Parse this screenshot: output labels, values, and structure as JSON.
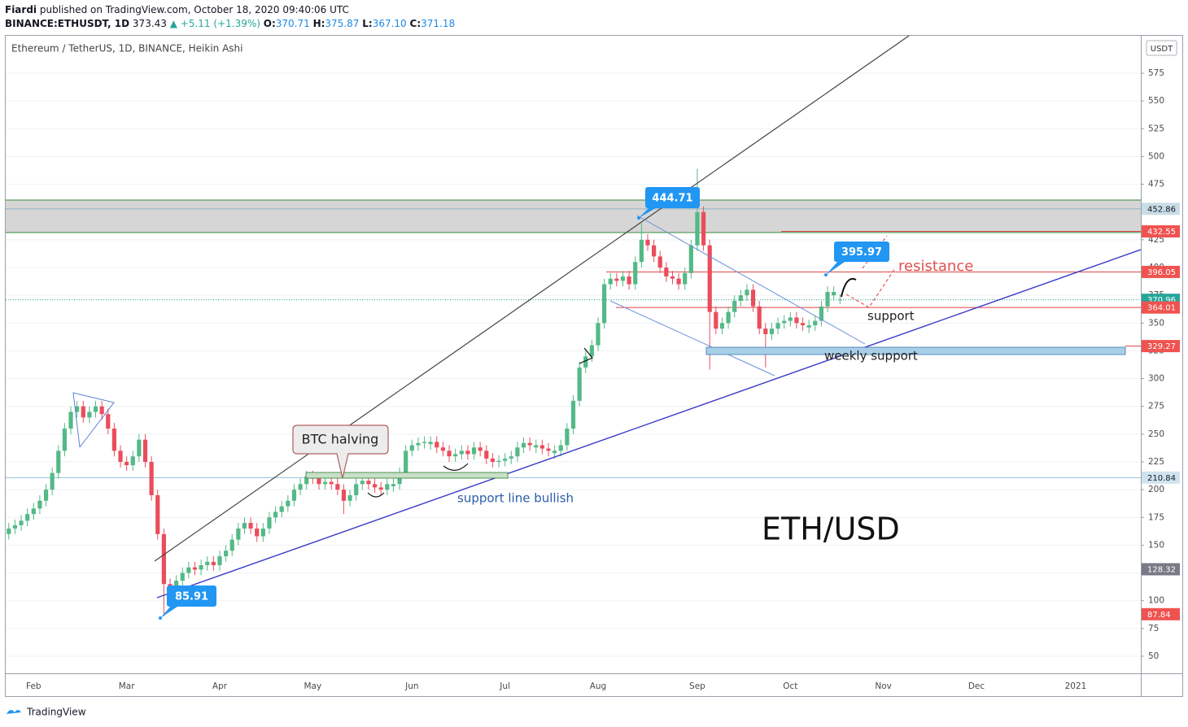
{
  "header": {
    "author": "Fiardi",
    "published": "published on TradingView.com, October 18, 2020 09:40:06 UTC",
    "symbol": "BINANCE:ETHUSDT, 1D",
    "price": "373.43",
    "change": "▲ +5.11 (+1.39%)",
    "ohlc": [
      {
        "key": "O:",
        "value": "370.71"
      },
      {
        "key": "H:",
        "value": "375.87"
      },
      {
        "key": "L:",
        "value": "367.10"
      },
      {
        "key": "C:",
        "value": "371.18"
      }
    ]
  },
  "footer": "TradingView",
  "chart_data": {
    "type": "candlestick",
    "title": "Ethereum / TetherUS, 1D, BINANCE, Heikin Ashi",
    "currency": "USDT",
    "up_color": "#53b987",
    "down_color": "#eb4d5c",
    "grid": true,
    "categories": [
      null,
      null,
      null,
      null,
      "Feb",
      null,
      null,
      null,
      null,
      null,
      null,
      null,
      null,
      null,
      null,
      null,
      null,
      null,
      null,
      "Mar",
      null,
      null,
      null,
      null,
      null,
      null,
      null,
      null,
      null,
      null,
      null,
      null,
      null,
      null,
      "Apr",
      null,
      null,
      null,
      null,
      null,
      null,
      null,
      null,
      null,
      null,
      null,
      null,
      null,
      null,
      "May",
      null,
      null,
      null,
      null,
      null,
      null,
      null,
      null,
      null,
      null,
      null,
      null,
      null,
      null,
      null,
      "Jun",
      null,
      null,
      null,
      null,
      null,
      null,
      null,
      null,
      null,
      null,
      null,
      null,
      null,
      null,
      "Jul",
      null,
      null,
      null,
      null,
      null,
      null,
      null,
      null,
      null,
      null,
      null,
      null,
      null,
      null,
      "Aug",
      null,
      null,
      null,
      null,
      null,
      null,
      null,
      null,
      null,
      null,
      null,
      null,
      null,
      null,
      null,
      "Sep",
      null,
      null,
      null,
      null,
      null,
      null,
      null,
      null,
      null,
      null,
      null,
      null,
      null,
      null,
      "Oct",
      null,
      null,
      null,
      null,
      null,
      null,
      null,
      null,
      null,
      null,
      null,
      null,
      null,
      null,
      "Nov",
      null,
      null,
      null,
      null,
      null,
      null,
      null,
      null,
      null,
      null,
      null,
      null,
      null,
      null,
      "Dec",
      null,
      null,
      null,
      null,
      null,
      null,
      null,
      null,
      null,
      null,
      null,
      null,
      null,
      null,
      null,
      "2021",
      null,
      null,
      null,
      null,
      null,
      null,
      null,
      null,
      null,
      null
    ],
    "open": [
      160,
      165,
      168,
      172,
      178,
      183,
      190,
      200,
      215,
      235,
      255,
      270,
      275,
      265,
      270,
      275,
      268,
      255,
      235,
      225,
      222,
      230,
      245,
      225,
      195,
      160,
      115,
      110,
      118,
      125,
      130,
      128,
      132,
      135,
      132,
      140,
      145,
      155,
      165,
      170,
      165,
      158,
      165,
      175,
      180,
      185,
      190,
      200,
      205,
      212,
      210,
      205,
      207,
      205,
      200,
      190,
      195,
      205,
      208,
      205,
      202,
      200,
      203,
      205,
      215,
      235,
      240,
      242,
      241,
      243,
      238,
      235,
      230,
      232,
      235,
      232,
      238,
      235,
      228,
      225,
      226,
      228,
      230,
      238,
      242,
      238,
      240,
      237,
      233,
      235,
      240,
      255,
      280,
      310,
      320,
      330,
      350,
      385,
      390,
      388,
      392,
      385,
      405,
      425,
      420,
      410,
      400,
      392,
      390,
      385,
      395,
      420,
      450,
      420,
      360,
      345,
      350,
      360,
      370,
      375,
      380,
      365,
      345,
      340,
      345,
      350,
      352,
      355,
      350,
      346,
      348,
      352,
      365,
      375,
      370.71,
      null,
      null,
      null,
      null,
      null,
      null,
      null,
      null,
      null,
      null,
      null,
      null,
      null,
      null,
      null,
      null,
      null,
      null,
      null,
      null,
      null,
      null,
      null,
      null,
      null,
      null,
      null,
      null,
      null,
      null,
      null,
      null,
      null,
      null,
      null,
      null,
      null,
      null,
      null,
      null,
      null,
      null,
      null,
      null,
      null,
      null,
      null,
      null
    ],
    "high": [
      170,
      173,
      177,
      183,
      188,
      195,
      205,
      220,
      240,
      260,
      275,
      280,
      280,
      275,
      280,
      280,
      273,
      260,
      240,
      230,
      235,
      250,
      250,
      230,
      200,
      165,
      120,
      123,
      130,
      135,
      135,
      137,
      140,
      140,
      145,
      150,
      160,
      170,
      175,
      175,
      170,
      170,
      180,
      185,
      190,
      195,
      205,
      210,
      217,
      217,
      215,
      212,
      212,
      210,
      205,
      200,
      210,
      213,
      213,
      210,
      207,
      210,
      210,
      220,
      240,
      245,
      247,
      248,
      248,
      248,
      243,
      240,
      237,
      240,
      240,
      243,
      243,
      240,
      233,
      231,
      233,
      235,
      243,
      247,
      247,
      245,
      245,
      242,
      240,
      245,
      260,
      285,
      315,
      325,
      335,
      355,
      390,
      395,
      395,
      397,
      397,
      410,
      440,
      430,
      425,
      415,
      405,
      397,
      395,
      400,
      425,
      489,
      455,
      425,
      365,
      355,
      365,
      375,
      380,
      385,
      385,
      370,
      350,
      350,
      355,
      357,
      360,
      360,
      355,
      353,
      357,
      370,
      383,
      383,
      375.87,
      null,
      null,
      null,
      null,
      null,
      null,
      null,
      null,
      null,
      null,
      null,
      null,
      null,
      null,
      null,
      null,
      null,
      null,
      null,
      null,
      null,
      null,
      null,
      null,
      null,
      null,
      null,
      null,
      null,
      null,
      null,
      null,
      null,
      null,
      null,
      null,
      null,
      null,
      null,
      null,
      null,
      null,
      null,
      null,
      null,
      null,
      null,
      null
    ],
    "low": [
      155,
      160,
      163,
      167,
      173,
      178,
      185,
      195,
      210,
      230,
      250,
      265,
      260,
      260,
      265,
      263,
      250,
      230,
      220,
      217,
      217,
      225,
      220,
      190,
      155,
      86,
      105,
      105,
      113,
      120,
      123,
      123,
      127,
      127,
      127,
      135,
      140,
      150,
      160,
      160,
      153,
      153,
      160,
      170,
      175,
      180,
      185,
      195,
      200,
      205,
      200,
      200,
      200,
      195,
      178,
      185,
      190,
      200,
      200,
      197,
      195,
      195,
      198,
      200,
      210,
      230,
      235,
      237,
      236,
      233,
      230,
      225,
      225,
      227,
      227,
      227,
      230,
      223,
      220,
      220,
      221,
      223,
      225,
      233,
      235,
      233,
      232,
      230,
      228,
      230,
      235,
      250,
      275,
      305,
      315,
      325,
      345,
      380,
      383,
      383,
      380,
      380,
      400,
      415,
      405,
      395,
      387,
      385,
      380,
      380,
      390,
      415,
      415,
      308,
      340,
      340,
      345,
      355,
      365,
      370,
      360,
      340,
      310,
      335,
      340,
      345,
      347,
      345,
      343,
      341,
      343,
      347,
      360,
      370,
      367.1,
      null,
      null,
      null,
      null,
      null,
      null,
      null,
      null,
      null,
      null,
      null,
      null,
      null,
      null,
      null,
      null,
      null,
      null,
      null,
      null,
      null,
      null,
      null,
      null,
      null,
      null,
      null,
      null,
      null,
      null,
      null,
      null,
      null,
      null,
      null,
      null,
      null,
      null,
      null,
      null,
      null,
      null,
      null,
      null,
      null,
      null,
      null,
      null
    ],
    "close": [
      165,
      168,
      172,
      178,
      183,
      190,
      200,
      215,
      235,
      255,
      270,
      275,
      265,
      270,
      275,
      268,
      255,
      235,
      225,
      222,
      230,
      245,
      225,
      195,
      160,
      115,
      110,
      118,
      125,
      130,
      128,
      132,
      135,
      132,
      140,
      145,
      155,
      165,
      170,
      165,
      158,
      165,
      175,
      180,
      185,
      190,
      200,
      205,
      212,
      210,
      205,
      207,
      205,
      200,
      190,
      195,
      205,
      208,
      205,
      202,
      200,
      205,
      205,
      215,
      235,
      240,
      242,
      243,
      243,
      238,
      235,
      230,
      232,
      235,
      232,
      238,
      235,
      228,
      225,
      226,
      228,
      230,
      238,
      242,
      240,
      240,
      237,
      235,
      235,
      240,
      255,
      280,
      310,
      320,
      330,
      350,
      385,
      390,
      388,
      392,
      385,
      405,
      425,
      420,
      410,
      400,
      392,
      390,
      385,
      395,
      420,
      450,
      420,
      360,
      345,
      350,
      360,
      370,
      375,
      380,
      365,
      345,
      340,
      345,
      350,
      352,
      355,
      350,
      348,
      348,
      352,
      365,
      378,
      378,
      371.18,
      null,
      null,
      null,
      null,
      null,
      null,
      null,
      null,
      null,
      null,
      null,
      null,
      null,
      null,
      null,
      null,
      null,
      null,
      null,
      null,
      null,
      null,
      null,
      null,
      null,
      null,
      null,
      null,
      null,
      null,
      null,
      null,
      null,
      null,
      null,
      null,
      null,
      null,
      null,
      null,
      null,
      null,
      null,
      null,
      null,
      null,
      null,
      null
    ],
    "ylim": [
      34.6,
      608.7
    ],
    "yticks": [
      50,
      75,
      100,
      125,
      150,
      175,
      200,
      225,
      250,
      275,
      300,
      325,
      350,
      375,
      400,
      425,
      450,
      475,
      500,
      525,
      550,
      575
    ],
    "price_labels": [
      {
        "value": 452.86,
        "color": "#c9dde6",
        "text_color": "#131722"
      },
      {
        "value": 432.55,
        "color": "#ef5350",
        "text_color": "#ffffff"
      },
      {
        "value": 396.05,
        "color": "#ef5350",
        "text_color": "#ffffff"
      },
      {
        "value": 370.96,
        "color": "#26a69a",
        "text_color": "#ffffff"
      },
      {
        "value": 364.01,
        "color": "#ef5350",
        "text_color": "#ffffff"
      },
      {
        "value": 329.27,
        "color": "#ef5350",
        "text_color": "#ffffff"
      },
      {
        "value": 210.84,
        "color": "#cfe3ee",
        "text_color": "#131722"
      },
      {
        "value": 128.32,
        "color": "#787b86",
        "text_color": "#ffffff"
      },
      {
        "value": 87.84,
        "color": "#ef5350",
        "text_color": "#ffffff"
      }
    ],
    "callouts": [
      {
        "value": 444.71
      },
      {
        "value": 395.97
      },
      {
        "value": 85.91
      }
    ],
    "annotations": {
      "halving": "BTC halving",
      "resistance": "resistance",
      "support": "support",
      "weekly_support": "weekly support",
      "support_line": "support line bullish",
      "pair": "ETH/USD"
    }
  }
}
